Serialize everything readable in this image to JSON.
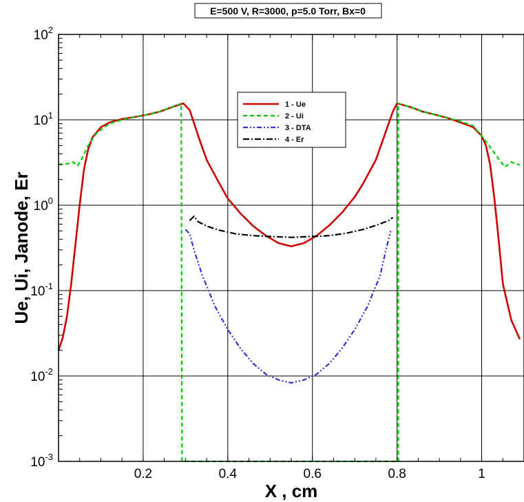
{
  "chart_data": {
    "type": "line",
    "title": "E=500 V, R=3000, p=5.0 Torr, Bx=0",
    "xlabel": "X , cm",
    "ylabel": "Ue, Ui, Janode, Er",
    "xlim": [
      0.0,
      1.1
    ],
    "ylim": [
      0.001,
      100
    ],
    "yscale": "log",
    "grid": true,
    "legend_position": "top-center",
    "x_ticks": [
      {
        "value": 0.2,
        "label": "0.2"
      },
      {
        "value": 0.4,
        "label": "0.4"
      },
      {
        "value": 0.6,
        "label": "0.6"
      },
      {
        "value": 0.8,
        "label": "0.8"
      },
      {
        "value": 1.0,
        "label": "1"
      }
    ],
    "y_ticks": [
      {
        "value": 0.001,
        "base": "10",
        "exp": "-3"
      },
      {
        "value": 0.01,
        "base": "10",
        "exp": "-2"
      },
      {
        "value": 0.1,
        "base": "10",
        "exp": "-1"
      },
      {
        "value": 1,
        "base": "10",
        "exp": "0"
      },
      {
        "value": 10,
        "base": "10",
        "exp": "1"
      },
      {
        "value": 100,
        "base": "10",
        "exp": "2"
      }
    ],
    "series": [
      {
        "name": "1 - Ue",
        "color": "#cc0000",
        "style": "solid",
        "points": [
          [
            0.0,
            0.02
          ],
          [
            0.01,
            0.028
          ],
          [
            0.02,
            0.05
          ],
          [
            0.03,
            0.12
          ],
          [
            0.04,
            0.35
          ],
          [
            0.05,
            1.0
          ],
          [
            0.06,
            2.6
          ],
          [
            0.07,
            4.5
          ],
          [
            0.08,
            6.2
          ],
          [
            0.1,
            8.2
          ],
          [
            0.12,
            9.3
          ],
          [
            0.15,
            10.2
          ],
          [
            0.18,
            10.8
          ],
          [
            0.21,
            11.5
          ],
          [
            0.24,
            12.5
          ],
          [
            0.27,
            14.2
          ],
          [
            0.295,
            15.6
          ],
          [
            0.31,
            13.0
          ],
          [
            0.33,
            6.5
          ],
          [
            0.35,
            3.4
          ],
          [
            0.38,
            1.8
          ],
          [
            0.4,
            1.2
          ],
          [
            0.43,
            0.8
          ],
          [
            0.46,
            0.57
          ],
          [
            0.49,
            0.44
          ],
          [
            0.52,
            0.36
          ],
          [
            0.55,
            0.33
          ],
          [
            0.58,
            0.36
          ],
          [
            0.61,
            0.44
          ],
          [
            0.64,
            0.58
          ],
          [
            0.67,
            0.82
          ],
          [
            0.7,
            1.25
          ],
          [
            0.72,
            1.8
          ],
          [
            0.75,
            3.4
          ],
          [
            0.77,
            6.5
          ],
          [
            0.79,
            12.5
          ],
          [
            0.8,
            15.6
          ],
          [
            0.83,
            14.2
          ],
          [
            0.86,
            12.5
          ],
          [
            0.89,
            11.5
          ],
          [
            0.92,
            10.5
          ],
          [
            0.95,
            9.3
          ],
          [
            0.98,
            8.2
          ],
          [
            1.0,
            6.5
          ],
          [
            1.01,
            5.0
          ],
          [
            1.02,
            3.0
          ],
          [
            1.03,
            1.2
          ],
          [
            1.04,
            0.4
          ],
          [
            1.05,
            0.12
          ],
          [
            1.07,
            0.045
          ],
          [
            1.09,
            0.027
          ]
        ]
      },
      {
        "name": "2 - Ui",
        "color": "#00cc00",
        "style": "dashed",
        "points": [
          [
            0.0,
            3.0
          ],
          [
            0.02,
            3.05
          ],
          [
            0.035,
            3.2
          ],
          [
            0.045,
            2.9
          ],
          [
            0.055,
            3.5
          ],
          [
            0.07,
            5.0
          ],
          [
            0.09,
            7.0
          ],
          [
            0.12,
            9.0
          ],
          [
            0.15,
            10.0
          ],
          [
            0.18,
            10.8
          ],
          [
            0.21,
            11.5
          ],
          [
            0.24,
            12.5
          ],
          [
            0.27,
            14.2
          ],
          [
            0.29,
            15.5
          ],
          [
            0.292,
            0.001
          ],
          [
            0.31,
            0.001
          ],
          [
            0.8,
            0.001
          ],
          [
            0.803,
            0.001
          ],
          [
            0.803,
            15.6
          ],
          [
            0.83,
            14.2
          ],
          [
            0.86,
            12.5
          ],
          [
            0.89,
            11.5
          ],
          [
            0.92,
            10.5
          ],
          [
            0.95,
            9.6
          ],
          [
            0.98,
            8.5
          ],
          [
            1.0,
            6.5
          ],
          [
            1.02,
            4.8
          ],
          [
            1.04,
            3.5
          ],
          [
            1.055,
            2.8
          ],
          [
            1.07,
            3.2
          ],
          [
            1.09,
            2.95
          ]
        ]
      },
      {
        "name": "3 - DTA",
        "color": "#3333cc",
        "style": "dashdotdot",
        "points": [
          [
            0.3,
            0.52
          ],
          [
            0.31,
            0.46
          ],
          [
            0.32,
            0.3
          ],
          [
            0.34,
            0.15
          ],
          [
            0.37,
            0.065
          ],
          [
            0.4,
            0.035
          ],
          [
            0.43,
            0.021
          ],
          [
            0.46,
            0.014
          ],
          [
            0.49,
            0.0105
          ],
          [
            0.52,
            0.009
          ],
          [
            0.55,
            0.0083
          ],
          [
            0.58,
            0.009
          ],
          [
            0.61,
            0.0105
          ],
          [
            0.64,
            0.014
          ],
          [
            0.67,
            0.021
          ],
          [
            0.7,
            0.035
          ],
          [
            0.73,
            0.065
          ],
          [
            0.76,
            0.15
          ],
          [
            0.775,
            0.32
          ],
          [
            0.785,
            0.5
          ]
        ]
      },
      {
        "name": "4 - Er",
        "color": "#000000",
        "style": "dashdot",
        "points": [
          [
            0.31,
            0.66
          ],
          [
            0.315,
            0.7
          ],
          [
            0.32,
            0.74
          ],
          [
            0.33,
            0.64
          ],
          [
            0.35,
            0.57
          ],
          [
            0.38,
            0.51
          ],
          [
            0.42,
            0.46
          ],
          [
            0.46,
            0.44
          ],
          [
            0.5,
            0.43
          ],
          [
            0.55,
            0.42
          ],
          [
            0.6,
            0.43
          ],
          [
            0.64,
            0.44
          ],
          [
            0.68,
            0.47
          ],
          [
            0.72,
            0.52
          ],
          [
            0.75,
            0.58
          ],
          [
            0.78,
            0.66
          ],
          [
            0.79,
            0.72
          ]
        ]
      }
    ]
  }
}
